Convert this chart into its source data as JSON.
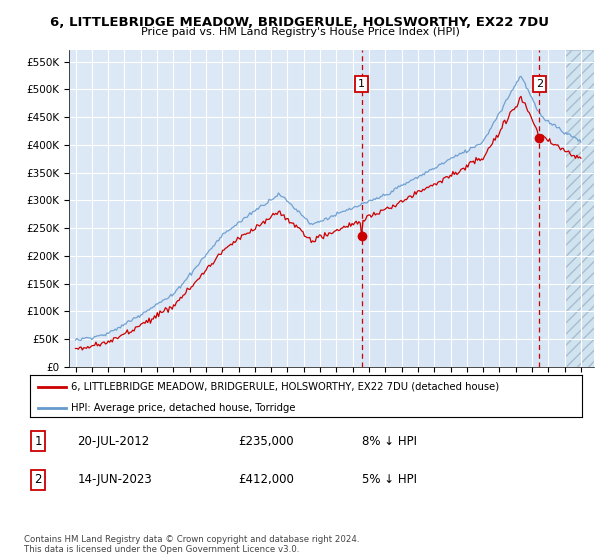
{
  "title": "6, LITTLEBRIDGE MEADOW, BRIDGERULE, HOLSWORTHY, EX22 7DU",
  "subtitle": "Price paid vs. HM Land Registry's House Price Index (HPI)",
  "ylim": [
    0,
    570000
  ],
  "yticks": [
    0,
    50000,
    100000,
    150000,
    200000,
    250000,
    300000,
    350000,
    400000,
    450000,
    500000,
    550000
  ],
  "ytick_labels": [
    "£0",
    "£50K",
    "£100K",
    "£150K",
    "£200K",
    "£250K",
    "£300K",
    "£350K",
    "£400K",
    "£450K",
    "£500K",
    "£550K"
  ],
  "background_color": "#ffffff",
  "plot_bg_color": "#dce8f5",
  "highlight_bg_color": "#e0ecf8",
  "grid_color": "#ffffff",
  "hpi_line_color": "#6699cc",
  "price_line_color": "#cc0000",
  "marker1_date": 2012.55,
  "marker1_price": 235000,
  "marker2_date": 2023.45,
  "marker2_price": 412000,
  "vline_color": "#cc0000",
  "legend_price_label": "6, LITTLEBRIDGE MEADOW, BRIDGERULE, HOLSWORTHY, EX22 7DU (detached house)",
  "legend_hpi_label": "HPI: Average price, detached house, Torridge",
  "note1_num": "1",
  "note1_date": "20-JUL-2012",
  "note1_price": "£235,000",
  "note1_pct": "8% ↓ HPI",
  "note2_num": "2",
  "note2_date": "14-JUN-2023",
  "note2_price": "£412,000",
  "note2_pct": "5% ↓ HPI",
  "footer": "Contains HM Land Registry data © Crown copyright and database right 2024.\nThis data is licensed under the Open Government Licence v3.0."
}
